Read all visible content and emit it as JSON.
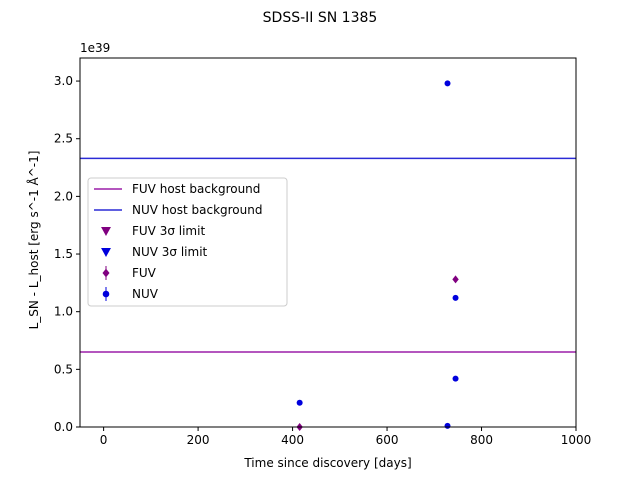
{
  "chart_data": {
    "type": "scatter",
    "title": "SDSS-II SN 1385",
    "xlabel": "Time since discovery [days]",
    "ylabel": "L_SN - L_host [erg s^-1 Å^-1]",
    "y_offset_label": "1e39",
    "xlim": [
      -50,
      1000
    ],
    "ylim": [
      0,
      3.2
    ],
    "x_ticks": [
      0,
      200,
      400,
      600,
      800,
      1000
    ],
    "x_tick_labels": [
      "0",
      "200",
      "400",
      "600",
      "800",
      "1000"
    ],
    "y_ticks": [
      0.0,
      0.5,
      1.0,
      1.5,
      2.0,
      2.5,
      3.0
    ],
    "y_tick_labels": [
      "0.0",
      "0.5",
      "1.0",
      "1.5",
      "2.0",
      "2.5",
      "3.0"
    ],
    "grid": false,
    "legend_position": "center-left",
    "hlines": [
      {
        "name": "FUV host background",
        "y": 0.65,
        "color": "#9b1fa8"
      },
      {
        "name": "NUV host background",
        "y": 2.33,
        "color": "#2b2bd6"
      }
    ],
    "series": [
      {
        "name": "FUV 3σ limit",
        "marker": "triangle-down",
        "color": "#800080",
        "x": [],
        "y": []
      },
      {
        "name": "NUV 3σ limit",
        "marker": "triangle-down",
        "color": "#0000dd",
        "x": [],
        "y": []
      },
      {
        "name": "FUV",
        "marker": "diamond",
        "color": "#800080",
        "x": [
          415,
          745
        ],
        "y": [
          0.0,
          1.28
        ]
      },
      {
        "name": "NUV",
        "marker": "circle",
        "color": "#0000dd",
        "x": [
          415,
          728,
          745,
          745,
          728
        ],
        "y": [
          0.21,
          2.98,
          1.12,
          0.42,
          0.01
        ]
      }
    ],
    "legend_order": [
      "FUV host background",
      "NUV host background",
      "FUV 3σ limit",
      "NUV 3σ limit",
      "FUV",
      "NUV"
    ]
  }
}
